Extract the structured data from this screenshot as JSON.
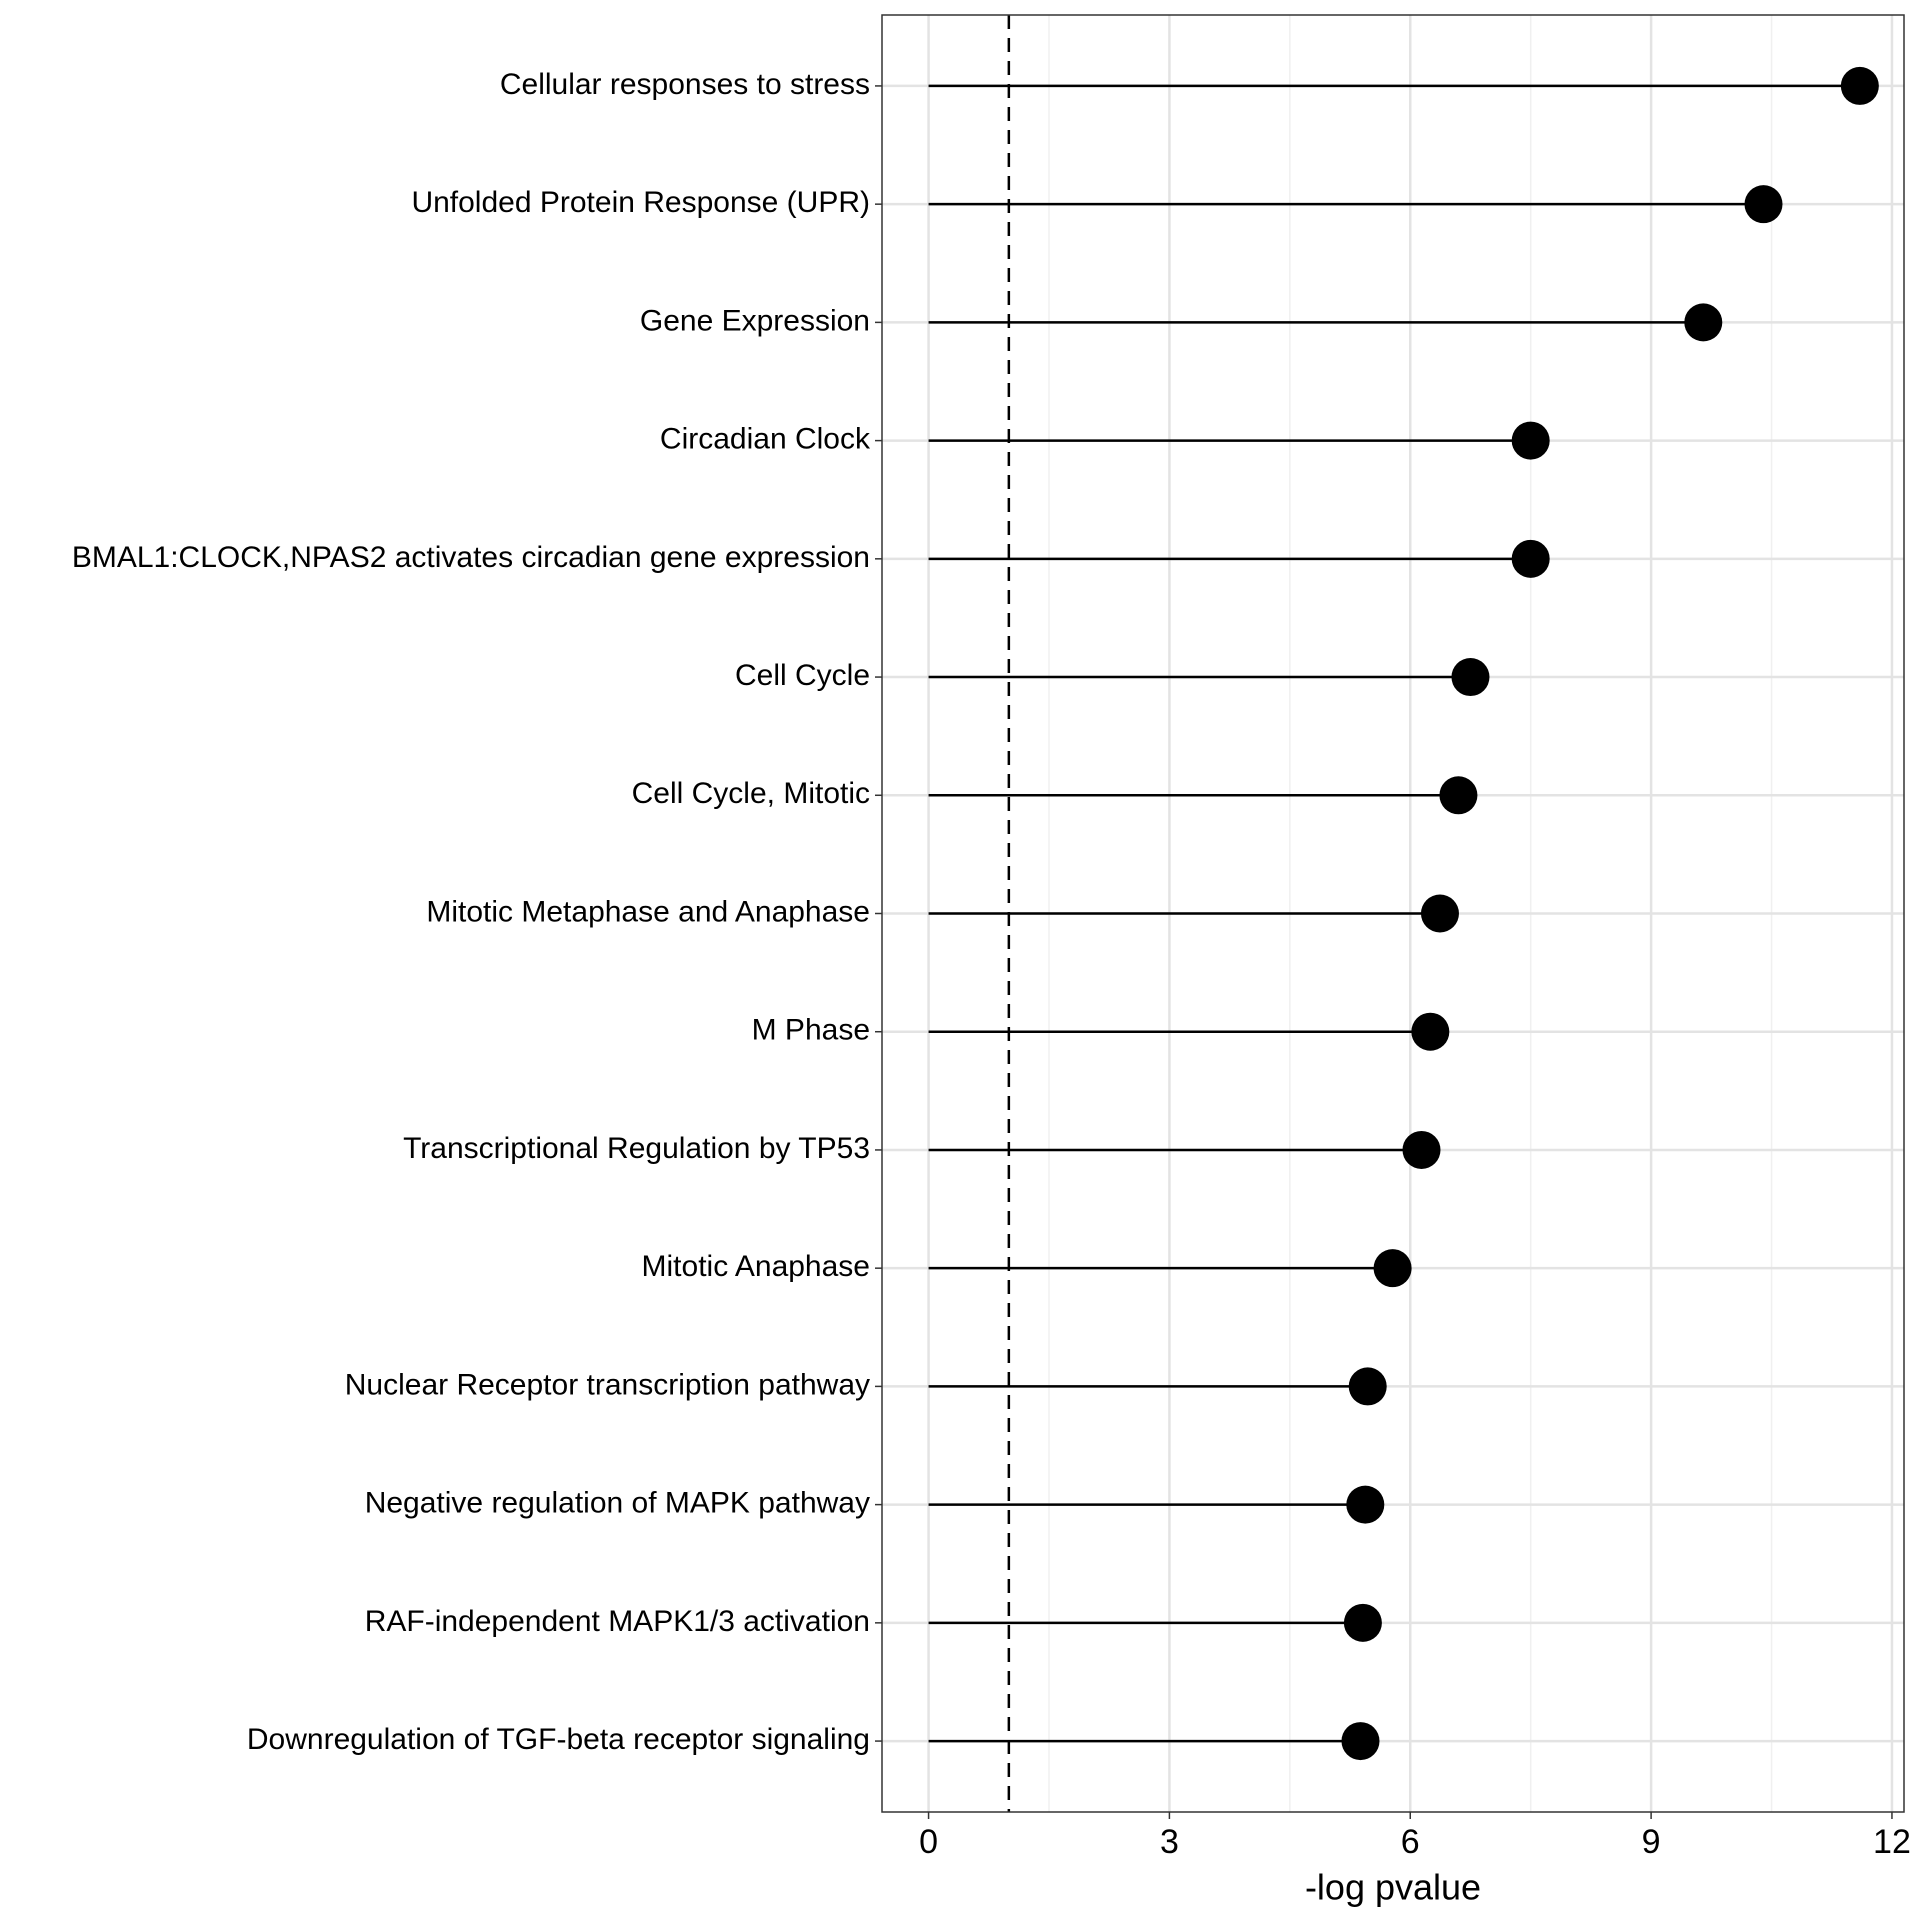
{
  "chart_data": {
    "type": "lollipop",
    "x_label": "-log pvalue",
    "categories": [
      "Cellular responses to stress",
      "Unfolded Protein Response (UPR)",
      "Gene Expression",
      "Circadian Clock",
      "BMAL1:CLOCK,NPAS2 activates circadian gene expression",
      "Cell Cycle",
      "Cell Cycle, Mitotic",
      "Mitotic Metaphase and Anaphase",
      "M Phase",
      "Transcriptional Regulation by TP53",
      "Mitotic Anaphase",
      "Nuclear Receptor transcription pathway",
      "Negative regulation of MAPK pathway",
      "RAF-independent MAPK1/3 activation",
      "Downregulation of TGF-beta receptor signaling"
    ],
    "values": [
      11.6,
      10.4,
      9.65,
      7.5,
      7.5,
      6.75,
      6.6,
      6.37,
      6.25,
      6.14,
      5.78,
      5.47,
      5.44,
      5.41,
      5.38
    ],
    "color": "#000000",
    "threshold": 1,
    "xlim": [
      -0.58,
      12.15
    ],
    "xticks": [
      0,
      3,
      6,
      9,
      12
    ],
    "grid": true
  }
}
